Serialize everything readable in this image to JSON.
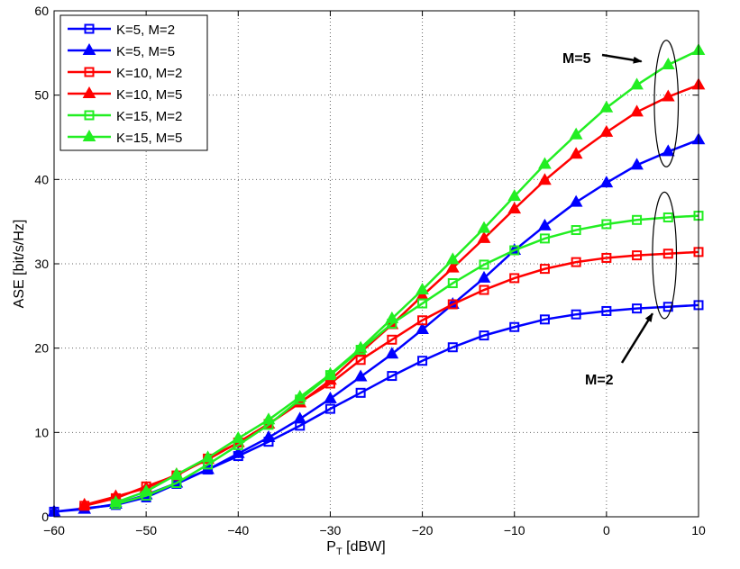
{
  "chart_data": {
    "type": "line",
    "title": "",
    "xlabel": "P",
    "xlabel_sub": "T",
    "xlabel_unit": " [dBW]",
    "ylabel": "ASE [bit/s/Hz]",
    "xlim": [
      -60,
      10
    ],
    "ylim": [
      0,
      60
    ],
    "xticks": [
      -60,
      -50,
      -40,
      -30,
      -20,
      -10,
      0,
      10
    ],
    "xtick_labels": [
      "−60",
      "−50",
      "−40",
      "−30",
      "−20",
      "−10",
      "0",
      "10"
    ],
    "yticks": [
      0,
      10,
      20,
      30,
      40,
      50,
      60
    ],
    "ytick_labels": [
      "0",
      "10",
      "20",
      "30",
      "40",
      "50",
      "60"
    ],
    "grid": true,
    "legend_position": "top-left",
    "series": [
      {
        "name": "K=5, M=2",
        "color": "#0000ff",
        "marker": "square",
        "x": [
          -60,
          -56.7,
          -53.3,
          -50,
          -46.7,
          -43.3,
          -40,
          -36.7,
          -33.3,
          -30,
          -26.7,
          -23.3,
          -20,
          -16.7,
          -13.3,
          -10,
          -6.7,
          -3.3,
          0,
          3.3,
          6.7,
          10
        ],
        "y": [
          0.6,
          1.0,
          1.4,
          2.3,
          3.9,
          5.6,
          7.2,
          8.9,
          10.8,
          12.8,
          14.7,
          16.7,
          18.5,
          20.1,
          21.5,
          22.5,
          23.4,
          24.0,
          24.4,
          24.7,
          24.9,
          25.1
        ]
      },
      {
        "name": "K=5, M=5",
        "color": "#0000ff",
        "marker": "triangle",
        "x": [
          -60,
          -56.7,
          -53.3,
          -50,
          -46.7,
          -43.3,
          -40,
          -36.7,
          -33.3,
          -30,
          -26.7,
          -23.3,
          -20,
          -16.7,
          -13.3,
          -10,
          -6.7,
          -3.3,
          0,
          3.3,
          6.7,
          10
        ],
        "y": [
          0.6,
          0.9,
          1.5,
          2.6,
          4.0,
          5.6,
          7.5,
          9.4,
          11.6,
          14.0,
          16.6,
          19.3,
          22.2,
          25.2,
          28.3,
          31.6,
          34.5,
          37.3,
          39.6,
          41.7,
          43.3,
          44.7
        ]
      },
      {
        "name": "K=10, M=2",
        "color": "#ff0000",
        "marker": "square",
        "x": [
          -56.7,
          -53.3,
          -50,
          -46.7,
          -43.3,
          -40,
          -36.7,
          -33.3,
          -30,
          -26.7,
          -23.3,
          -20,
          -16.7,
          -13.3,
          -10,
          -6.7,
          -3.3,
          0,
          3.3,
          6.7,
          10
        ],
        "y": [
          1.3,
          2.2,
          3.6,
          4.9,
          6.9,
          8.8,
          11.0,
          13.6,
          15.8,
          18.6,
          21.0,
          23.3,
          25.2,
          26.9,
          28.3,
          29.4,
          30.2,
          30.7,
          31.0,
          31.2,
          31.4
        ]
      },
      {
        "name": "K=10, M=5",
        "color": "#ff0000",
        "marker": "triangle",
        "x": [
          -56.7,
          -53.3,
          -50,
          -46.7,
          -43.3,
          -40,
          -36.7,
          -33.3,
          -30,
          -26.7,
          -23.3,
          -20,
          -16.7,
          -13.3,
          -10,
          -6.7,
          -3.3,
          0,
          3.3,
          6.7,
          10
        ],
        "y": [
          1.4,
          2.4,
          3.4,
          5.0,
          6.8,
          8.8,
          11.0,
          13.5,
          16.2,
          19.5,
          22.8,
          26.2,
          29.5,
          33.0,
          36.5,
          39.9,
          43.0,
          45.6,
          48.0,
          49.8,
          51.2
        ]
      },
      {
        "name": "K=15, M=2",
        "color": "#22ee22",
        "marker": "square",
        "x": [
          -53.3,
          -50,
          -46.7,
          -43.3,
          -40,
          -36.7,
          -33.3,
          -30,
          -26.7,
          -23.3,
          -20,
          -16.7,
          -13.3,
          -10,
          -6.7,
          -3.3,
          0,
          3.3,
          6.7,
          10
        ],
        "y": [
          1.5,
          2.5,
          4.0,
          6.2,
          8.5,
          10.9,
          13.9,
          16.8,
          19.8,
          22.9,
          25.3,
          27.7,
          29.9,
          31.6,
          33.0,
          34.0,
          34.7,
          35.2,
          35.5,
          35.7
        ]
      },
      {
        "name": "K=15, M=5",
        "color": "#22ee22",
        "marker": "triangle",
        "x": [
          -53.3,
          -50,
          -46.7,
          -43.3,
          -40,
          -36.7,
          -33.3,
          -30,
          -26.7,
          -23.3,
          -20,
          -16.7,
          -13.3,
          -10,
          -6.7,
          -3.3,
          0,
          3.3,
          6.7,
          10
        ],
        "y": [
          1.7,
          3.0,
          5.0,
          7.0,
          9.3,
          11.5,
          14.2,
          16.9,
          20.0,
          23.5,
          26.9,
          30.5,
          34.2,
          38.0,
          41.8,
          45.3,
          48.5,
          51.2,
          53.6,
          55.3
        ]
      }
    ],
    "annotations": [
      {
        "text": "M=5",
        "arrow_to": [
          3.8,
          54.0
        ],
        "ellipse_center": [
          6.5,
          49.0
        ],
        "ellipse_size": [
          2.6,
          15.0
        ]
      },
      {
        "text": "M=2",
        "arrow_to": [
          5.0,
          24.1
        ],
        "ellipse_center": [
          6.3,
          31.0
        ],
        "ellipse_size": [
          2.6,
          15.0
        ]
      }
    ]
  }
}
